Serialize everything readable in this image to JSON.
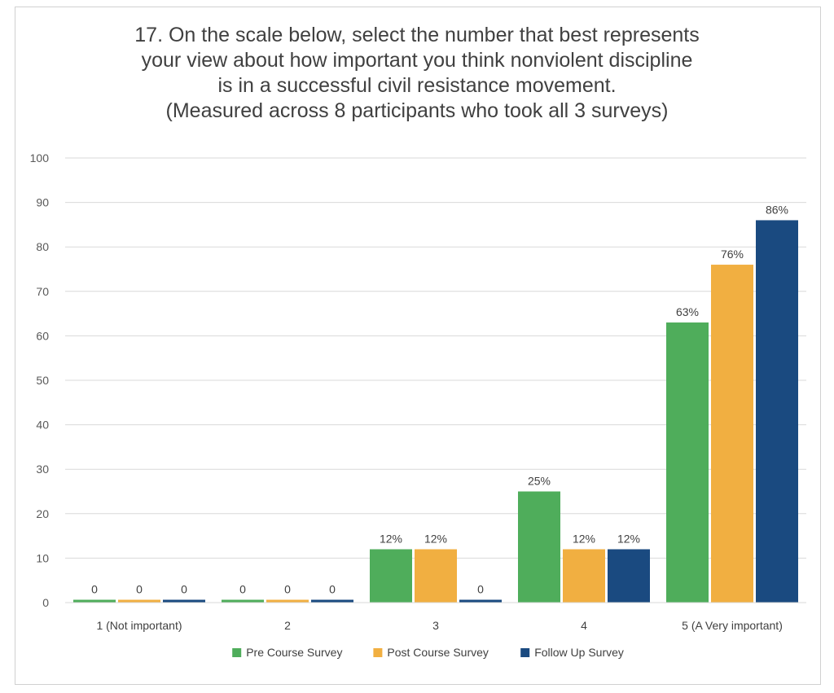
{
  "chart_data": {
    "type": "bar",
    "title_lines": [
      "17. On the scale below, select the number that best represents",
      "your view about how important you think nonviolent discipline",
      "is in a successful civil resistance movement.",
      "(Measured across 8 participants who took all 3 surveys)"
    ],
    "categories": [
      "1 (Not important)",
      "2",
      "3",
      "4",
      "5 (A Very important)"
    ],
    "series": [
      {
        "name": "Pre Course Survey",
        "color": "#4fad5b",
        "values": [
          0,
          0,
          12,
          25,
          63
        ],
        "labels": [
          "0",
          "0",
          "12%",
          "25%",
          "63%"
        ]
      },
      {
        "name": "Post Course Survey",
        "color": "#f1af41",
        "values": [
          0,
          0,
          12,
          12,
          76
        ],
        "labels": [
          "0",
          "0",
          "12%",
          "12%",
          "76%"
        ]
      },
      {
        "name": "Follow Up Survey",
        "color": "#1a4a80",
        "values": [
          0,
          0,
          0,
          12,
          86
        ],
        "labels": [
          "0",
          "0",
          "0",
          "12%",
          "86%"
        ]
      }
    ],
    "ylim": [
      0,
      100
    ],
    "yticks": [
      0,
      10,
      20,
      30,
      40,
      50,
      60,
      70,
      80,
      90,
      100
    ],
    "grid": true,
    "legend_position": "bottom"
  }
}
